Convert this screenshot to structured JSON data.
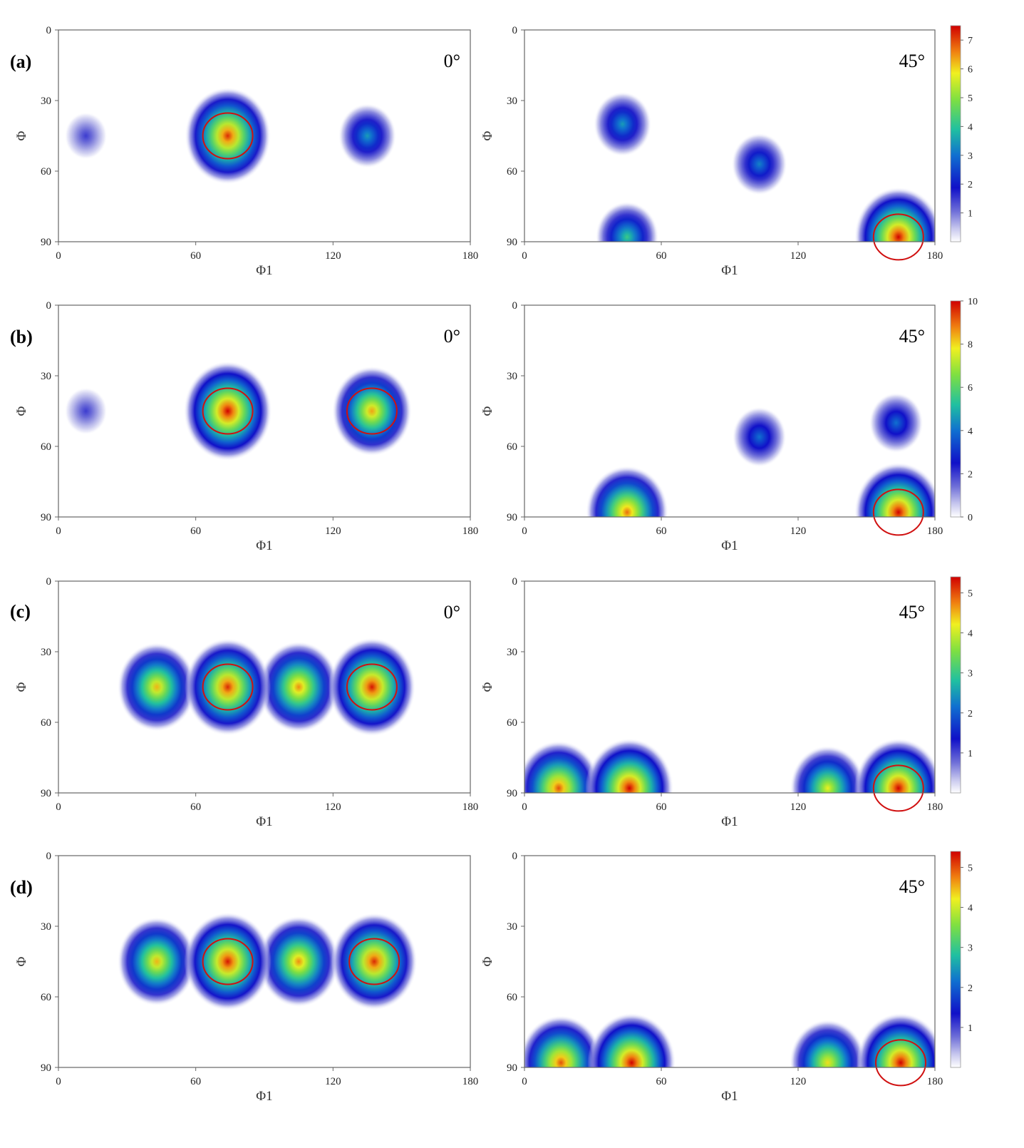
{
  "figure": {
    "rows": [
      {
        "label": "(a)",
        "left_angle": "0°",
        "right_angle": "45°",
        "cbar_ticks": [
          "1",
          "2",
          "3",
          "4",
          "5",
          "6",
          "7"
        ],
        "cbar_max": 7.5
      },
      {
        "label": "(b)",
        "left_angle": "0°",
        "right_angle": "45°",
        "cbar_ticks": [
          "0",
          "2",
          "4",
          "6",
          "8",
          "10"
        ],
        "cbar_max": 10
      },
      {
        "label": "(c)",
        "left_angle": "0°",
        "right_angle": "45°",
        "cbar_ticks": [
          "1",
          "2",
          "3",
          "4",
          "5"
        ],
        "cbar_max": 5.4
      },
      {
        "label": "(d)",
        "left_angle": "",
        "right_angle": "45°",
        "cbar_ticks": [
          "1",
          "2",
          "3",
          "4",
          "5"
        ],
        "cbar_max": 5.4
      }
    ],
    "x_ticks": [
      "0",
      "60",
      "120",
      "180"
    ],
    "y_ticks": [
      "0",
      "30",
      "60",
      "90"
    ],
    "xlabel": "Φ1",
    "ylabel": "Φ",
    "colors": {
      "low": "#ffffff",
      "mid": "#1010c8",
      "green": "#30d070",
      "yellow": "#f0f020",
      "high": "#d00000",
      "circle": "#d01010"
    }
  },
  "chart_data": [
    {
      "type": "heatmap",
      "panel": "(a) 0°",
      "xlabel": "Φ1",
      "ylabel": "Φ",
      "xlim": [
        0,
        180
      ],
      "ylim": [
        0,
        90
      ],
      "peaks": [
        {
          "x": 74,
          "y": 45,
          "value": 7.2,
          "circled": true
        },
        {
          "x": 135,
          "y": 45,
          "value": 3.5
        },
        {
          "x": 12,
          "y": 45,
          "value": 1.5
        }
      ]
    },
    {
      "type": "heatmap",
      "panel": "(a) 45°",
      "xlabel": "Φ1",
      "ylabel": "Φ",
      "xlim": [
        0,
        180
      ],
      "ylim": [
        0,
        90
      ],
      "peaks": [
        {
          "x": 164,
          "y": 88,
          "value": 7.5,
          "circled": true
        },
        {
          "x": 45,
          "y": 88,
          "value": 4.2
        },
        {
          "x": 103,
          "y": 57,
          "value": 3.2
        },
        {
          "x": 43,
          "y": 40,
          "value": 3.5
        }
      ]
    },
    {
      "type": "heatmap",
      "panel": "(b) 0°",
      "xlabel": "Φ1",
      "ylabel": "Φ",
      "xlim": [
        0,
        180
      ],
      "ylim": [
        0,
        90
      ],
      "peaks": [
        {
          "x": 74,
          "y": 45,
          "value": 10,
          "circled": true
        },
        {
          "x": 137,
          "y": 45,
          "value": 8.5,
          "circled": true
        },
        {
          "x": 12,
          "y": 45,
          "value": 2
        }
      ]
    },
    {
      "type": "heatmap",
      "panel": "(b) 45°",
      "xlabel": "Φ1",
      "ylabel": "Φ",
      "xlim": [
        0,
        180
      ],
      "ylim": [
        0,
        90
      ],
      "peaks": [
        {
          "x": 164,
          "y": 88,
          "value": 10,
          "circled": true
        },
        {
          "x": 45,
          "y": 88,
          "value": 9
        },
        {
          "x": 103,
          "y": 56,
          "value": 4
        },
        {
          "x": 163,
          "y": 50,
          "value": 4
        }
      ]
    },
    {
      "type": "heatmap",
      "panel": "(c) 0°",
      "xlabel": "Φ1",
      "ylabel": "Φ",
      "xlim": [
        0,
        180
      ],
      "ylim": [
        0,
        90
      ],
      "peaks": [
        {
          "x": 43,
          "y": 45,
          "value": 4.5
        },
        {
          "x": 74,
          "y": 45,
          "value": 5.2,
          "circled": true
        },
        {
          "x": 105,
          "y": 45,
          "value": 4.7
        },
        {
          "x": 137,
          "y": 45,
          "value": 5.3,
          "circled": true
        }
      ]
    },
    {
      "type": "heatmap",
      "panel": "(c) 45°",
      "xlabel": "Φ1",
      "ylabel": "Φ",
      "xlim": [
        0,
        180
      ],
      "ylim": [
        0,
        90
      ],
      "peaks": [
        {
          "x": 15,
          "y": 88,
          "value": 5
        },
        {
          "x": 46,
          "y": 88,
          "value": 5.4
        },
        {
          "x": 133,
          "y": 88,
          "value": 4.2
        },
        {
          "x": 164,
          "y": 88,
          "value": 5.4,
          "circled": true
        }
      ]
    },
    {
      "type": "heatmap",
      "panel": "(d)",
      "xlabel": "Φ1",
      "ylabel": "Φ",
      "xlim": [
        0,
        180
      ],
      "ylim": [
        0,
        90
      ],
      "peaks": [
        {
          "x": 43,
          "y": 45,
          "value": 4.5
        },
        {
          "x": 74,
          "y": 45,
          "value": 5.3,
          "circled": true
        },
        {
          "x": 105,
          "y": 45,
          "value": 4.7
        },
        {
          "x": 138,
          "y": 45,
          "value": 5.2,
          "circled": true
        }
      ]
    },
    {
      "type": "heatmap",
      "panel": "(d) 45°",
      "xlabel": "Φ1",
      "ylabel": "Φ",
      "xlim": [
        0,
        180
      ],
      "ylim": [
        0,
        90
      ],
      "peaks": [
        {
          "x": 16,
          "y": 88,
          "value": 5
        },
        {
          "x": 47,
          "y": 88,
          "value": 5.4
        },
        {
          "x": 133,
          "y": 88,
          "value": 4.3
        },
        {
          "x": 165,
          "y": 88,
          "value": 5.4,
          "circled": true
        }
      ]
    }
  ]
}
